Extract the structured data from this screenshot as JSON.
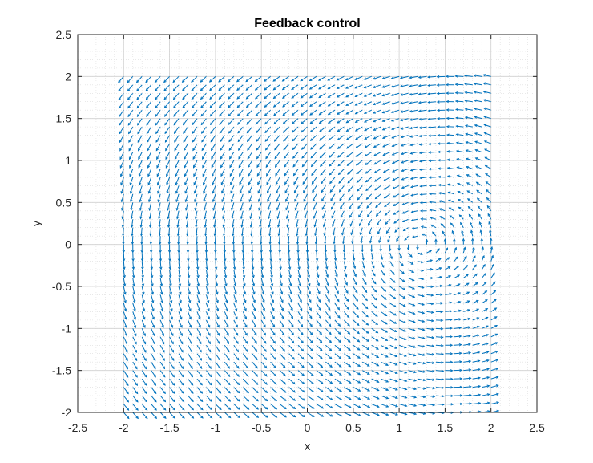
{
  "chart_data": {
    "type": "quiver",
    "title": "Feedback control",
    "xlabel": "x",
    "ylabel": "y",
    "xlim": [
      -2.5,
      2.5
    ],
    "ylim": [
      -2,
      2.5
    ],
    "xticks": [
      -2.5,
      -2,
      -1.5,
      -1,
      -0.5,
      0,
      0.5,
      1,
      1.5,
      2,
      2.5
    ],
    "yticks": [
      -2,
      -1.5,
      -1,
      -0.5,
      0,
      0.5,
      1,
      1.5,
      2,
      2.5
    ],
    "xtick_labels": [
      "-2.5",
      "-2",
      "-1.5",
      "-1",
      "-0.5",
      "0",
      "0.5",
      "1",
      "1.5",
      "2",
      "2.5"
    ],
    "ytick_labels": [
      "-2",
      "-1.5",
      "-1",
      "-0.5",
      "0",
      "0.5",
      "1",
      "1.5",
      "2",
      "2.5"
    ],
    "grid": true,
    "minor_grid": true,
    "arrow_color": "#0072BD",
    "grid_x_range": [
      -2,
      2
    ],
    "grid_y_range": [
      -2,
      2
    ],
    "grid_step": 0.1,
    "equilibrium": [
      1,
      0
    ],
    "field": "u = (y^2 - 1.2*y) - 2*(x-1)*y;  v = -(x-1)*y - ((x-1)^2 - y^2)*0.5  (approximate direction field, arrows normalized)"
  }
}
